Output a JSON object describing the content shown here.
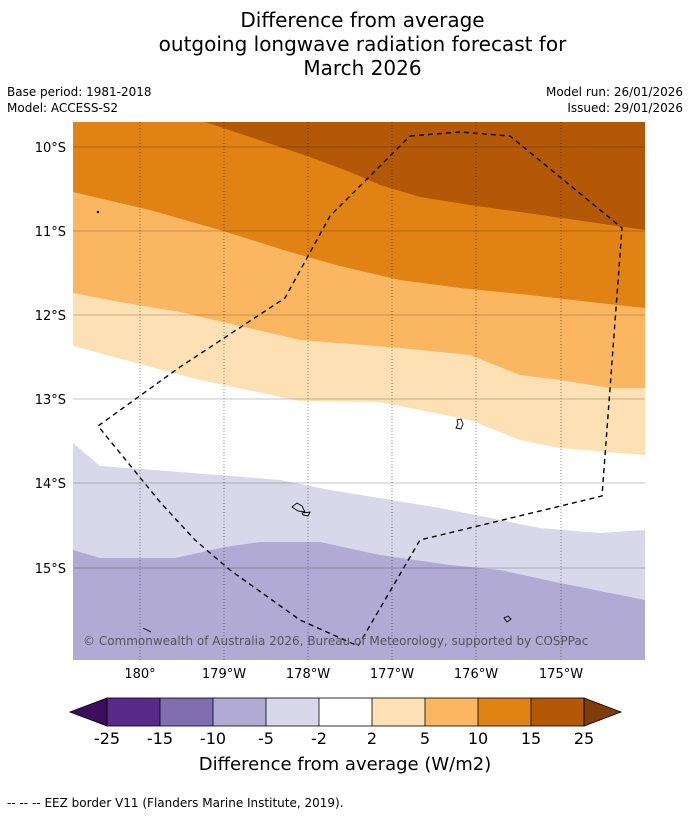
{
  "header": {
    "title_lines": [
      "Difference from average",
      "outgoing longwave radiation forecast for",
      "March 2026"
    ],
    "base_period": "Base period: 1981-2018",
    "model": "Model: ACCESS-S2",
    "model_run": "Model run: 26/01/2026",
    "issued": "Issued: 29/01/2026"
  },
  "map": {
    "lat_labels": [
      "10°S",
      "11°S",
      "12°S",
      "13°S",
      "14°S",
      "15°S"
    ],
    "lon_labels": [
      "180°",
      "179°W",
      "178°W",
      "177°W",
      "176°W",
      "175°W"
    ],
    "copyright": "© Commonwealth of Australia 2026, Bureau of Meteorology, supported by COSPPac"
  },
  "legend": {
    "ticks": [
      "-25",
      "-15",
      "-10",
      "-5",
      "-2",
      "2",
      "5",
      "10",
      "15",
      "25"
    ],
    "colors": [
      "#3b0f5e",
      "#582a8a",
      "#7f6fb0",
      "#b1aad4",
      "#d8d8ea",
      "#ffffff",
      "#fee0b5",
      "#fbb662",
      "#e08214",
      "#b35806",
      "#7f3b08"
    ],
    "label": "Difference from average (W/m2)"
  },
  "footer": {
    "symbol": "-- -- --",
    "text": "EEZ border V11 (Flanders Marine Institute, 2019)."
  }
}
